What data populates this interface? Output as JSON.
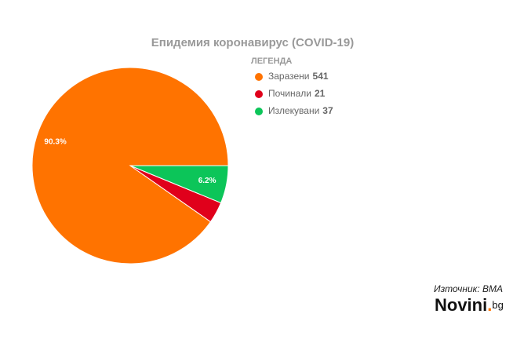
{
  "chart_data": {
    "type": "pie",
    "title": "Епидемия коронавирус (COVID-19)",
    "legend_title": "ЛЕГЕНДА",
    "categories": [
      "Заразени",
      "Починали",
      "Излекувани"
    ],
    "values": [
      90.3,
      3.5,
      6.2
    ],
    "value_labels": [
      "90.3%",
      null,
      "6.2%"
    ],
    "counts": [
      541,
      21,
      37
    ],
    "colors": [
      "#ff7300",
      "#e0001b",
      "#0cc559"
    ],
    "source": "Източник: ВМА"
  },
  "logo": {
    "name": "Novini",
    "dot": ".",
    "tld": "bg"
  }
}
